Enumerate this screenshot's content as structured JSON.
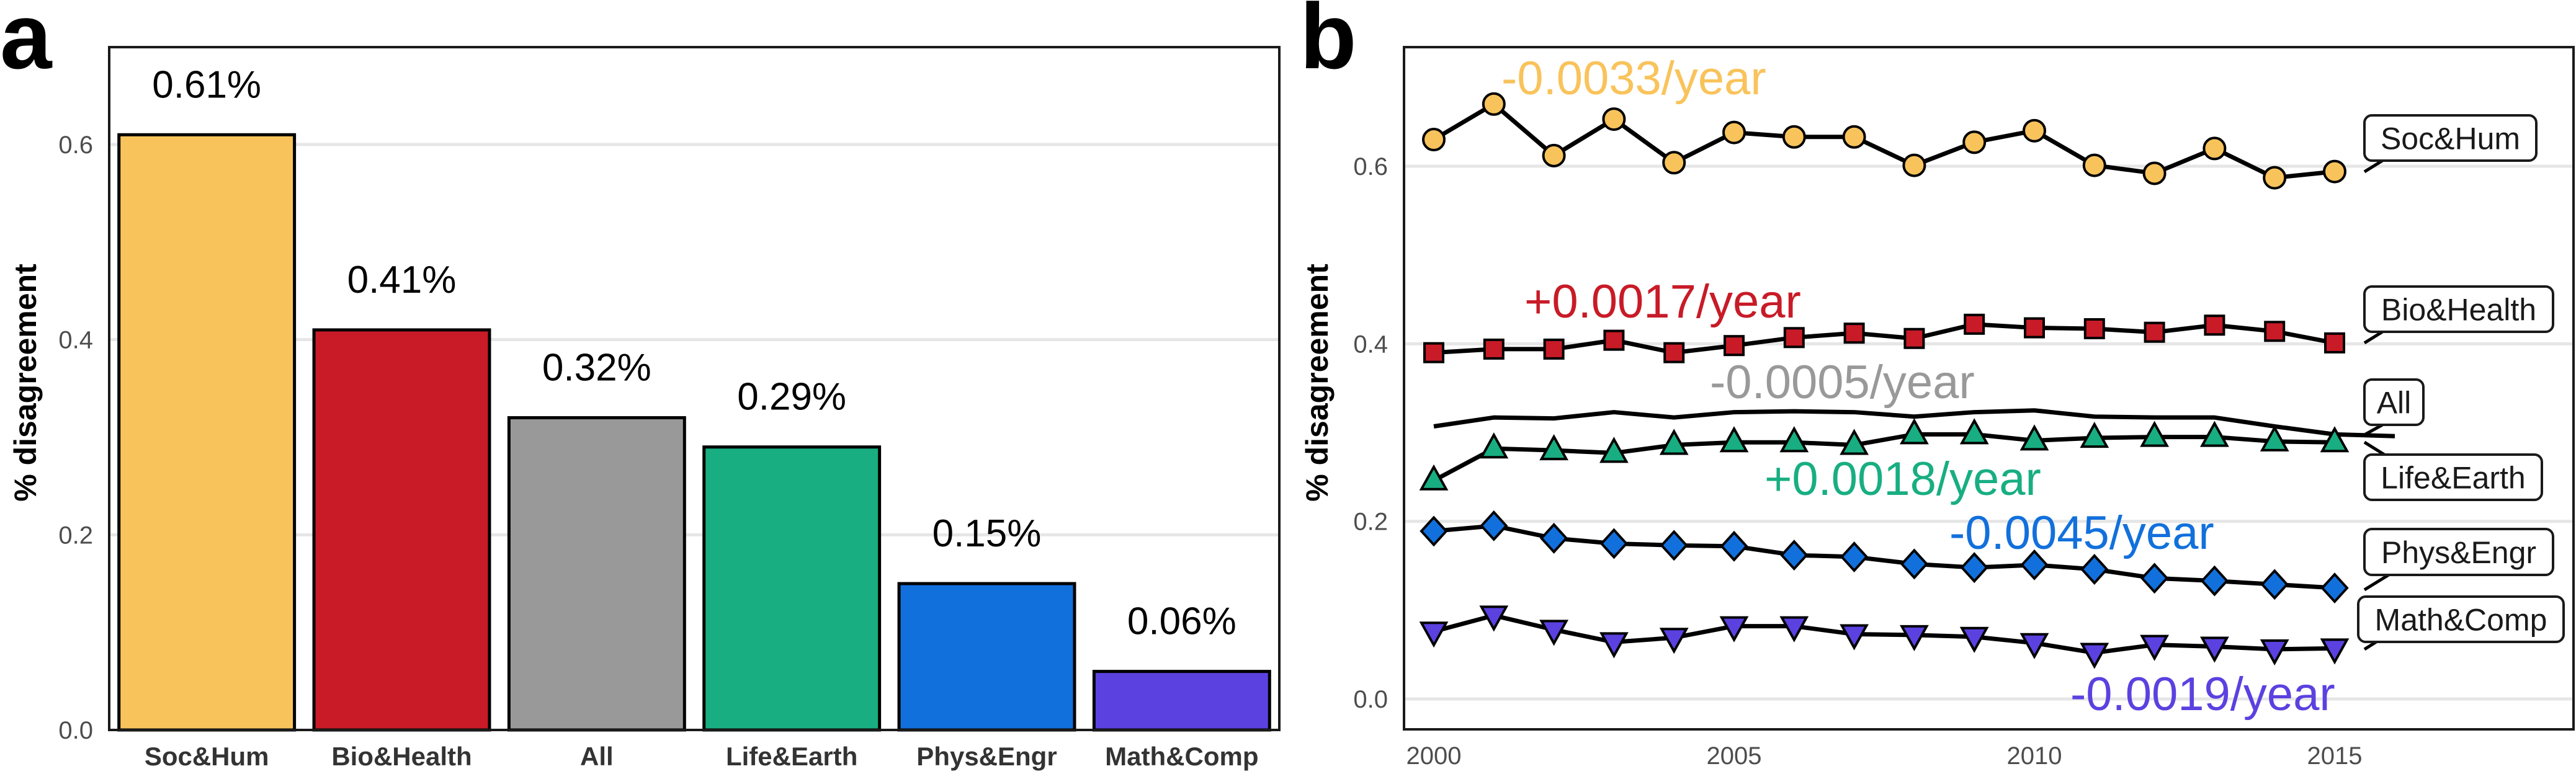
{
  "figure": {
    "panel_a_letter": "a",
    "panel_b_letter": "b"
  },
  "chart_data": [
    {
      "panel": "a",
      "type": "bar",
      "title": "",
      "xlabel": "",
      "ylabel": "% disagreement",
      "ylim": [
        0,
        0.6
      ],
      "yticks": [
        0.0,
        0.2,
        0.4,
        0.6
      ],
      "ytick_labels": [
        "0.0",
        "0.2",
        "0.4",
        "0.6"
      ],
      "grid": true,
      "categories": [
        "Soc&Hum",
        "Bio&Health",
        "All",
        "Life&Earth",
        "Phys&Engr",
        "Math&Comp"
      ],
      "values": [
        0.61,
        0.41,
        0.32,
        0.29,
        0.15,
        0.06
      ],
      "data_labels": [
        "0.61%",
        "0.41%",
        "0.32%",
        "0.29%",
        "0.15%",
        "0.06%"
      ],
      "colors": [
        "#F9C35B",
        "#C81B27",
        "#999999",
        "#18AE82",
        "#1270DC",
        "#5B41E0"
      ]
    },
    {
      "panel": "b",
      "type": "line",
      "title": "",
      "xlabel": "",
      "ylabel": "% disagreement",
      "xlim": [
        2000,
        2019
      ],
      "ylim": [
        0.0,
        0.6
      ],
      "xticks": [
        2000,
        2005,
        2010,
        2015
      ],
      "xtick_labels": [
        "2000",
        "2005",
        "2010",
        "2015"
      ],
      "yticks": [
        0.0,
        0.2,
        0.4,
        0.6
      ],
      "ytick_labels": [
        "0.0",
        "0.2",
        "0.4",
        "0.6"
      ],
      "grid": true,
      "legend": "direct-labels-right",
      "x": [
        2000,
        2001,
        2002,
        2003,
        2004,
        2005,
        2006,
        2007,
        2008,
        2009,
        2010,
        2011,
        2012,
        2013,
        2014,
        2015
      ],
      "series": [
        {
          "name": "Soc&Hum",
          "color": "#F9C35B",
          "marker": "circle",
          "trend": "-0.0033/year",
          "values": [
            0.63,
            0.67,
            0.612,
            0.653,
            0.604,
            0.638,
            0.633,
            0.633,
            0.601,
            0.627,
            0.64,
            0.601,
            0.592,
            0.62,
            0.587,
            0.594
          ]
        },
        {
          "name": "Bio&Health",
          "color": "#C81B27",
          "marker": "square",
          "trend": "+0.0017/year",
          "values": [
            0.39,
            0.394,
            0.394,
            0.404,
            0.39,
            0.398,
            0.407,
            0.412,
            0.406,
            0.422,
            0.418,
            0.417,
            0.413,
            0.421,
            0.414,
            0.401
          ]
        },
        {
          "name": "All",
          "color": "#999999",
          "marker": "none",
          "trend": "-0.0005/year",
          "values": [
            0.307,
            0.317,
            0.316,
            0.323,
            0.317,
            0.323,
            0.324,
            0.323,
            0.318,
            0.323,
            0.325,
            0.318,
            0.317,
            0.317,
            0.307,
            0.298
          ],
          "extension_value": 0.296
        },
        {
          "name": "Life&Earth",
          "color": "#18AE82",
          "marker": "triangle-up",
          "trend": "+0.0018/year",
          "values": [
            0.246,
            0.282,
            0.28,
            0.277,
            0.286,
            0.289,
            0.289,
            0.286,
            0.298,
            0.298,
            0.291,
            0.294,
            0.295,
            0.295,
            0.29,
            0.289
          ]
        },
        {
          "name": "Phys&Engr",
          "color": "#1270DC",
          "marker": "diamond",
          "trend": "-0.0045/year",
          "values": [
            0.189,
            0.195,
            0.181,
            0.175,
            0.173,
            0.172,
            0.162,
            0.16,
            0.152,
            0.148,
            0.151,
            0.146,
            0.136,
            0.133,
            0.129,
            0.125
          ]
        },
        {
          "name": "Math&Comp",
          "color": "#5B41E0",
          "marker": "triangle-down",
          "trend": "-0.0019/year",
          "values": [
            0.076,
            0.094,
            0.078,
            0.064,
            0.069,
            0.082,
            0.082,
            0.073,
            0.072,
            0.07,
            0.063,
            0.052,
            0.061,
            0.059,
            0.056,
            0.057
          ]
        }
      ]
    }
  ]
}
